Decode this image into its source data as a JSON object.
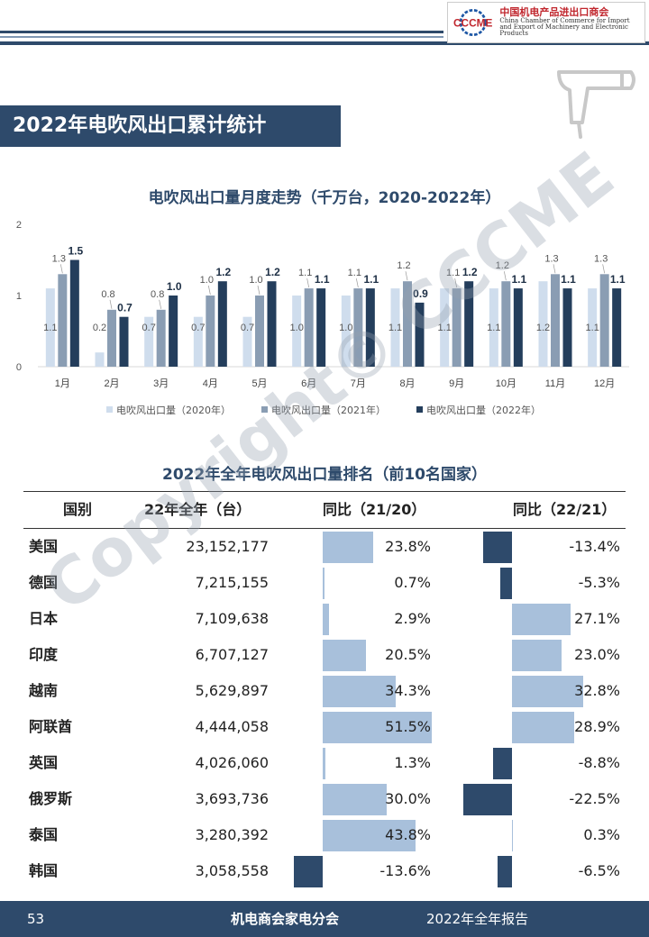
{
  "header": {
    "logo_mark": "CCCME",
    "org_cn": "中国机电产品进出口商会",
    "org_en_1": "China Chamber of Commerce for Import",
    "org_en_2": "and Export of Machinery and Electronic Products"
  },
  "section_title": "2022年电吹风出口累计统计",
  "watermark": "Copyright© CCCME",
  "colors": {
    "navy": "#2e4a6b",
    "c2020": "#cfdded",
    "c2021": "#8a9db3",
    "c2022": "#243e5c",
    "pos": "#a8c0db",
    "neg": "#2e4a6b"
  },
  "chart_data": {
    "type": "bar",
    "title": "电吹风出口量月度走势（千万台，2020-2022年）",
    "categories": [
      "1月",
      "2月",
      "3月",
      "4月",
      "5月",
      "6月",
      "7月",
      "8月",
      "9月",
      "10月",
      "11月",
      "12月"
    ],
    "series": [
      {
        "name": "电吹风出口量（2020年）",
        "values": [
          1.1,
          0.2,
          0.7,
          0.7,
          0.7,
          1.0,
          1.0,
          1.1,
          1.1,
          1.1,
          1.2,
          1.1
        ]
      },
      {
        "name": "电吹风出口量（2021年）",
        "values": [
          1.3,
          0.8,
          0.8,
          1.0,
          1.0,
          1.1,
          1.1,
          1.2,
          1.1,
          1.2,
          1.3,
          1.3
        ]
      },
      {
        "name": "电吹风出口量（2022年）",
        "values": [
          1.5,
          0.7,
          1.0,
          1.2,
          1.2,
          1.1,
          1.1,
          0.9,
          1.2,
          1.1,
          1.1,
          1.1
        ]
      }
    ],
    "ylim": [
      0,
      2
    ],
    "yticks": [
      "0",
      "1",
      "2"
    ],
    "legend": "bottom"
  },
  "table": {
    "title": "2022年全年电吹风出口量排名（前10名国家）",
    "headers": [
      "国别",
      "22年全年（台）",
      "同比（21/20）",
      "同比（22/21）"
    ],
    "rows": [
      {
        "country": "美国",
        "qty": "23,152,177",
        "yoy1": "23.8%",
        "yoy2": "-13.4%",
        "v1": 23.8,
        "v2": -13.4
      },
      {
        "country": "德国",
        "qty": "7,215,155",
        "yoy1": "0.7%",
        "yoy2": "-5.3%",
        "v1": 0.7,
        "v2": -5.3
      },
      {
        "country": "日本",
        "qty": "7,109,638",
        "yoy1": "2.9%",
        "yoy2": "27.1%",
        "v1": 2.9,
        "v2": 27.1
      },
      {
        "country": "印度",
        "qty": "6,707,127",
        "yoy1": "20.5%",
        "yoy2": "23.0%",
        "v1": 20.5,
        "v2": 23.0
      },
      {
        "country": "越南",
        "qty": "5,629,897",
        "yoy1": "34.3%",
        "yoy2": "32.8%",
        "v1": 34.3,
        "v2": 32.8
      },
      {
        "country": "阿联酋",
        "qty": "4,444,058",
        "yoy1": "51.5%",
        "yoy2": "28.9%",
        "v1": 51.5,
        "v2": 28.9
      },
      {
        "country": "英国",
        "qty": "4,026,060",
        "yoy1": "1.3%",
        "yoy2": "-8.8%",
        "v1": 1.3,
        "v2": -8.8
      },
      {
        "country": "俄罗斯",
        "qty": "3,693,736",
        "yoy1": "30.0%",
        "yoy2": "-22.5%",
        "v1": 30.0,
        "v2": -22.5
      },
      {
        "country": "泰国",
        "qty": "3,280,392",
        "yoy1": "43.8%",
        "yoy2": "0.3%",
        "v1": 43.8,
        "v2": 0.3
      },
      {
        "country": "韩国",
        "qty": "3,058,558",
        "yoy1": "-13.6%",
        "yoy2": "-6.5%",
        "v1": -13.6,
        "v2": -6.5
      }
    ]
  },
  "footer": {
    "page": "53",
    "org": "机电商会家电分会",
    "report": "2022年全年报告"
  }
}
